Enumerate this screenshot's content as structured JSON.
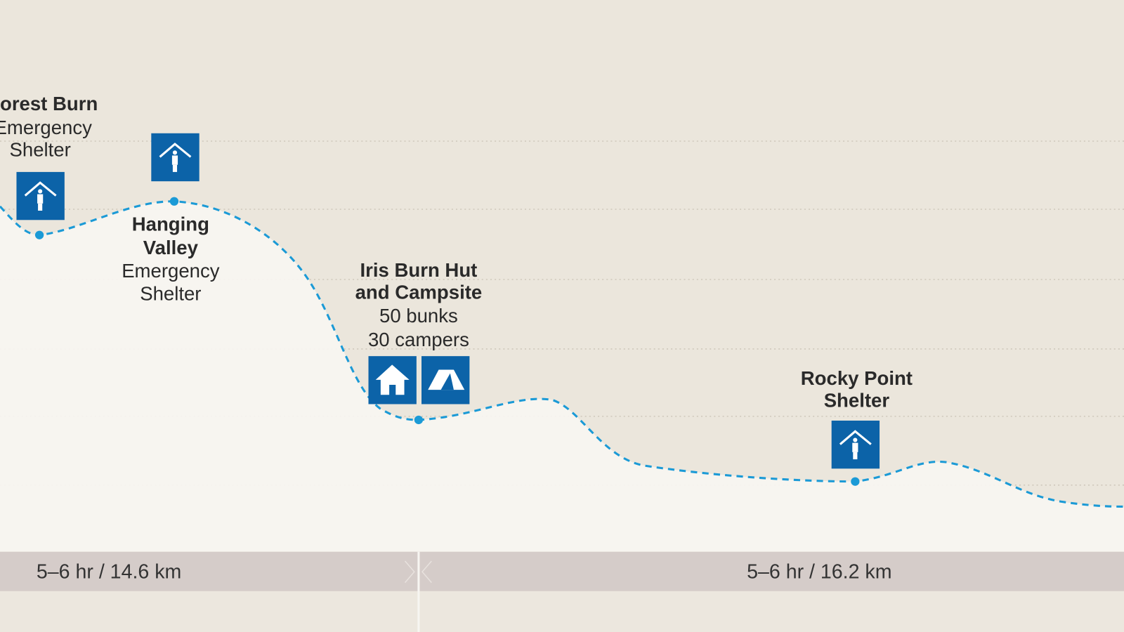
{
  "colors": {
    "sky": "#ebe6dc",
    "ground": "#f7f5f1",
    "trail": "#1b9ad6",
    "icon_bg": "#0c63a8",
    "bar": "#d5ccc9",
    "label": "#2a2a2a"
  },
  "stops": [
    {
      "name": "Forest Burn",
      "subtitle_lines": [
        "Emergency",
        "Shelter"
      ],
      "icons": [
        "shelter-icon"
      ]
    },
    {
      "name_lines": [
        "Hanging",
        "Valley"
      ],
      "subtitle_lines": [
        "Emergency",
        "Shelter"
      ],
      "icons": [
        "shelter-icon"
      ]
    },
    {
      "name_lines": [
        "Iris Burn Hut",
        "and Campsite"
      ],
      "subtitle_lines": [
        "50 bunks",
        "30 campers"
      ],
      "icons": [
        "hut-icon",
        "tent-icon"
      ]
    },
    {
      "name_lines": [
        "Rocky Point",
        "Shelter"
      ],
      "icons": [
        "shelter-icon"
      ]
    }
  ],
  "segments": [
    {
      "label": "5–6 hr / 14.6 km"
    },
    {
      "label": "5–6 hr / 16.2 km"
    }
  ]
}
